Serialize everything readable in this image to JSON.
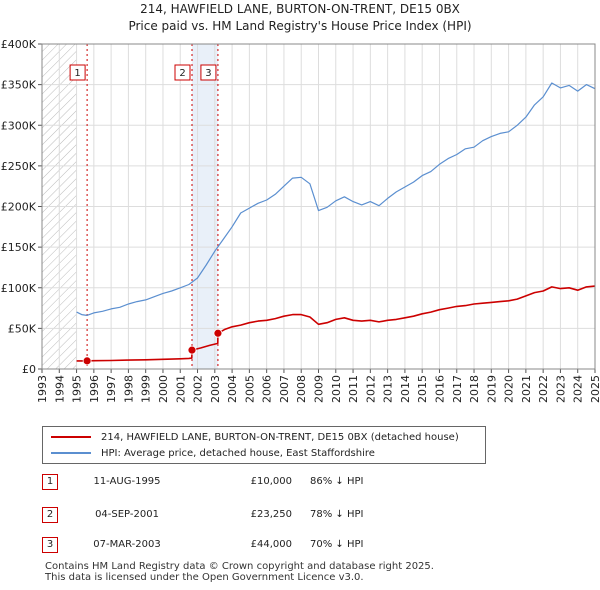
{
  "chart_data": {
    "type": "line",
    "title": "214, HAWFIELD LANE, BURTON-ON-TRENT, DE15 0BX",
    "subtitle": "Price paid vs. HM Land Registry's House Price Index (HPI)",
    "xlabel": "",
    "ylabel": "",
    "xlim": [
      1993,
      2025
    ],
    "ylim": [
      0,
      400000
    ],
    "x_ticks": [
      "1993",
      "1994",
      "1995",
      "1996",
      "1997",
      "1998",
      "1999",
      "2000",
      "2001",
      "2002",
      "2003",
      "2004",
      "2005",
      "2006",
      "2007",
      "2008",
      "2009",
      "2010",
      "2011",
      "2012",
      "2013",
      "2014",
      "2015",
      "2016",
      "2017",
      "2018",
      "2019",
      "2020",
      "2021",
      "2022",
      "2023",
      "2024",
      "2025"
    ],
    "y_ticks": [
      {
        "value": 0,
        "label": "£0"
      },
      {
        "value": 50000,
        "label": "£50K"
      },
      {
        "value": 100000,
        "label": "£100K"
      },
      {
        "value": 150000,
        "label": "£150K"
      },
      {
        "value": 200000,
        "label": "£200K"
      },
      {
        "value": 250000,
        "label": "£250K"
      },
      {
        "value": 300000,
        "label": "£300K"
      },
      {
        "value": 350000,
        "label": "£350K"
      },
      {
        "value": 400000,
        "label": "£400K"
      }
    ],
    "grid": true,
    "hatched_region_x": [
      1993,
      1995.0
    ],
    "shaded_region_x": [
      2001.68,
      2003.18
    ],
    "series": [
      {
        "name": "hpi",
        "color": "#5b8fd0",
        "x": [
          1995.0,
          1995.3,
          1995.6,
          1996.0,
          1996.5,
          1997.0,
          1997.5,
          1998.0,
          1998.5,
          1999.0,
          1999.5,
          2000.0,
          2000.5,
          2001.0,
          2001.5,
          2002.0,
          2002.5,
          2003.0,
          2003.5,
          2004.0,
          2004.5,
          2005.0,
          2005.5,
          2006.0,
          2006.5,
          2007.0,
          2007.5,
          2008.0,
          2008.5,
          2009.0,
          2009.5,
          2010.0,
          2010.5,
          2011.0,
          2011.5,
          2012.0,
          2012.5,
          2013.0,
          2013.5,
          2014.0,
          2014.5,
          2015.0,
          2015.5,
          2016.0,
          2016.5,
          2017.0,
          2017.5,
          2018.0,
          2018.5,
          2019.0,
          2019.5,
          2020.0,
          2020.5,
          2021.0,
          2021.5,
          2022.0,
          2022.5,
          2023.0,
          2023.5,
          2024.0,
          2024.5,
          2025.0
        ],
        "y": [
          70000,
          67000,
          66000,
          69000,
          71000,
          74000,
          76000,
          80000,
          83000,
          85000,
          89000,
          93000,
          96000,
          100000,
          104000,
          112000,
          128000,
          145000,
          160000,
          175000,
          192000,
          198000,
          204000,
          208000,
          215000,
          225000,
          235000,
          236000,
          228000,
          195000,
          199000,
          207000,
          212000,
          206000,
          202000,
          206000,
          201000,
          210000,
          218000,
          224000,
          230000,
          238000,
          243000,
          252000,
          259000,
          264000,
          271000,
          273000,
          281000,
          286000,
          290000,
          292000,
          300000,
          310000,
          325000,
          335000,
          352000,
          346000,
          349000,
          342000,
          350000,
          345000
        ]
      },
      {
        "name": "property",
        "color": "#cc0000",
        "x": [
          1995.0,
          1995.6,
          1996.0,
          1997.0,
          1998.0,
          1999.0,
          2000.0,
          2001.0,
          2001.5,
          2001.67,
          2001.68,
          2002.2,
          2002.7,
          2003.17,
          2003.18,
          2003.6,
          2004.0,
          2004.5,
          2005.0,
          2005.5,
          2006.0,
          2006.5,
          2007.0,
          2007.5,
          2008.0,
          2008.5,
          2009.0,
          2009.5,
          2010.0,
          2010.5,
          2011.0,
          2011.5,
          2012.0,
          2012.5,
          2013.0,
          2013.5,
          2014.0,
          2014.5,
          2015.0,
          2015.5,
          2016.0,
          2016.5,
          2017.0,
          2017.5,
          2018.0,
          2018.5,
          2019.0,
          2019.5,
          2020.0,
          2020.5,
          2021.0,
          2021.5,
          2022.0,
          2022.5,
          2023.0,
          2023.5,
          2024.0,
          2024.5,
          2025.0
        ],
        "y": [
          10000,
          10000,
          10200,
          10500,
          11000,
          11300,
          11900,
          12500,
          13000,
          13400,
          23250,
          26000,
          29000,
          31500,
          44000,
          49000,
          52000,
          54000,
          57000,
          59000,
          60000,
          62000,
          65000,
          67000,
          67000,
          64000,
          55000,
          57000,
          61000,
          63000,
          60000,
          59000,
          60000,
          58000,
          60000,
          61000,
          63000,
          65000,
          68000,
          70000,
          73000,
          75000,
          77000,
          78000,
          80000,
          81000,
          82000,
          83000,
          84000,
          86000,
          90000,
          94000,
          96000,
          101000,
          99000,
          100000,
          97000,
          101000,
          102000
        ]
      }
    ],
    "transactions": [
      {
        "id": "1",
        "x": 1995.61,
        "price": 10000
      },
      {
        "id": "2",
        "x": 2001.68,
        "price": 23250
      },
      {
        "id": "3",
        "x": 2003.18,
        "price": 44000
      }
    ]
  },
  "legend": [
    {
      "label": "214, HAWFIELD LANE, BURTON-ON-TRENT, DE15 0BX (detached house)",
      "color": "#cc0000"
    },
    {
      "label": "HPI: Average price, detached house, East Staffordshire",
      "color": "#5b8fd0"
    }
  ],
  "table": [
    {
      "num": "1",
      "date": "11-AUG-1995",
      "price": "£10,000",
      "hpi": "86% ↓ HPI"
    },
    {
      "num": "2",
      "date": "04-SEP-2001",
      "price": "£23,250",
      "hpi": "78% ↓ HPI"
    },
    {
      "num": "3",
      "date": "07-MAR-2003",
      "price": "£44,000",
      "hpi": "70% ↓ HPI"
    }
  ],
  "footer": {
    "line1": "Contains HM Land Registry data © Crown copyright and database right 2025.",
    "line2": "This data is licensed under the Open Government Licence v3.0."
  }
}
